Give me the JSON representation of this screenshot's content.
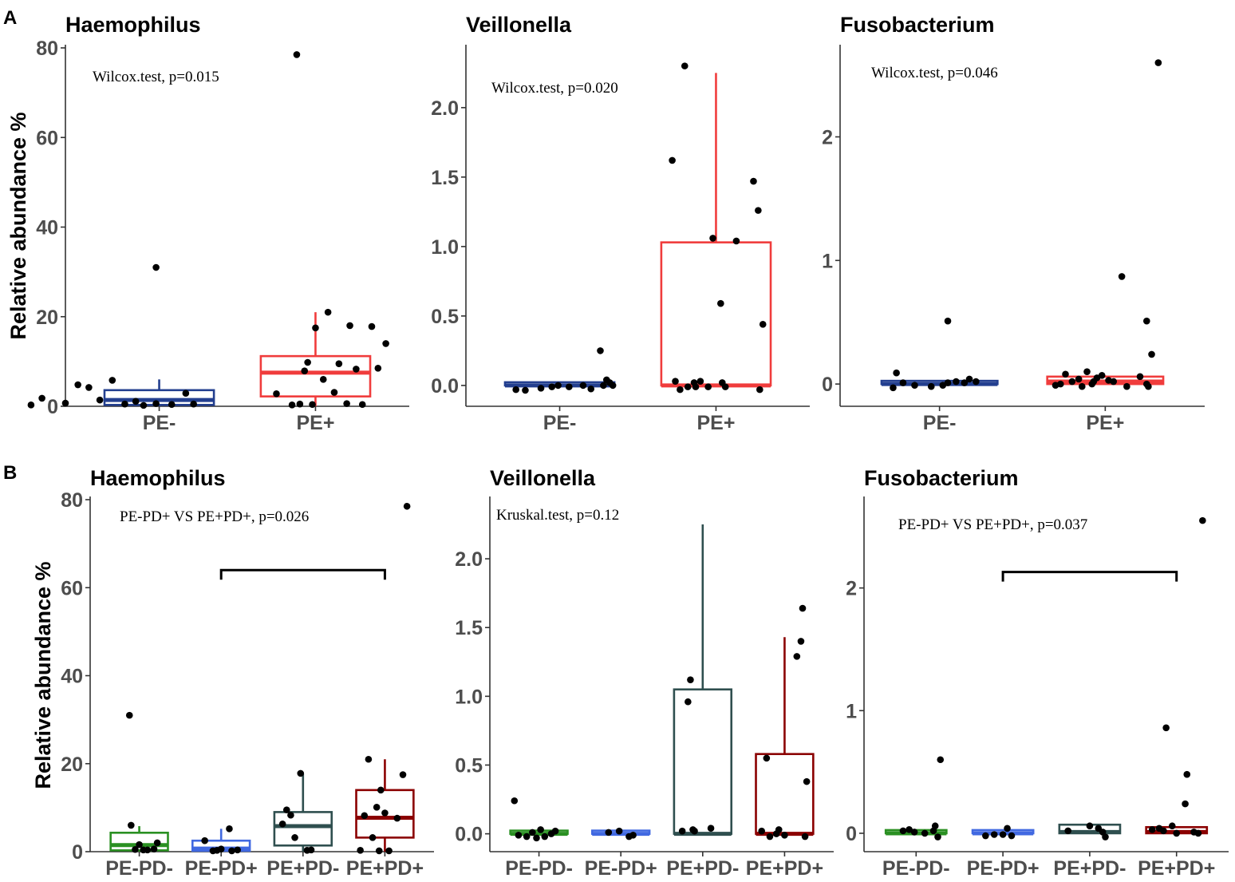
{
  "panel_labels": [
    "A",
    "B"
  ],
  "chart_data": [
    {
      "type": "box",
      "title": "Haemophilus",
      "ylabel": "Relative abundance %",
      "ylim": [
        0,
        80
      ],
      "yticks": [
        0,
        20,
        40,
        60,
        80
      ],
      "yticklabels": [
        "0",
        "20",
        "40",
        "60",
        "80"
      ],
      "annotation": "Wilcox.test, p=0.015",
      "categories": [
        "PE-",
        "PE+"
      ],
      "colors": [
        "#233f8f",
        "#f03c3c"
      ],
      "boxes": [
        {
          "q1": 0.3,
          "median": 1.4,
          "q3": 3.6,
          "whisker_low": 0,
          "whisker_high": 6
        },
        {
          "q1": 2.2,
          "median": 7.5,
          "q3": 11.2,
          "whisker_low": 0,
          "whisker_high": 21
        }
      ],
      "points": [
        [
          [
            0.18,
            0.3
          ],
          [
            0.25,
            1.8
          ],
          [
            0.4,
            0.7
          ],
          [
            0.48,
            4.8
          ],
          [
            0.55,
            4.2
          ],
          [
            0.62,
            1.4
          ],
          [
            0.7,
            5.8
          ],
          [
            0.78,
            0.5
          ],
          [
            0.85,
            1.1
          ],
          [
            0.9,
            0.2
          ],
          [
            0.98,
            0.6
          ],
          [
            1.08,
            0.4
          ],
          [
            1.17,
            2.9
          ],
          [
            1.22,
            0.5
          ],
          [
            0.98,
            31
          ]
        ],
        [
          [
            1.75,
            2.8
          ],
          [
            1.85,
            0.3
          ],
          [
            1.9,
            0.5
          ],
          [
            1.95,
            9.8
          ],
          [
            2.0,
            17.5
          ],
          [
            2.05,
            6.0
          ],
          [
            2.08,
            21
          ],
          [
            1.98,
            0.4
          ],
          [
            2.12,
            3.1
          ],
          [
            2.2,
            0.6
          ],
          [
            2.22,
            18
          ],
          [
            2.26,
            8.3
          ],
          [
            2.3,
            0.4
          ],
          [
            2.36,
            17.8
          ],
          [
            2.4,
            8.5
          ],
          [
            2.45,
            14
          ],
          [
            2.15,
            9.5
          ],
          [
            1.88,
            78.5
          ],
          [
            1.93,
            7.9
          ]
        ]
      ]
    },
    {
      "type": "box",
      "title": "Veillonella",
      "ylabel": "",
      "ylim": [
        -0.15,
        2.43
      ],
      "yticks": [
        0,
        0.5,
        1.0,
        1.5,
        2.0
      ],
      "yticklabels": [
        "0.0",
        "0.5",
        "1.0",
        "1.5",
        "2.0"
      ],
      "annotation": "Wilcox.test, p=0.020",
      "categories": [
        "PE-",
        "PE+"
      ],
      "colors": [
        "#233f8f",
        "#f03c3c"
      ],
      "boxes": [
        {
          "q1": 0.0,
          "median": 0.0,
          "q3": 0.01,
          "whisker_low": 0,
          "whisker_high": 0.01
        },
        {
          "q1": 0.0,
          "median": 0.0,
          "q3": 1.03,
          "whisker_low": 0,
          "whisker_high": 2.25
        }
      ],
      "points": [
        [
          [
            0.72,
            -0.03
          ],
          [
            0.78,
            -0.035
          ],
          [
            0.88,
            -0.02
          ],
          [
            0.95,
            -0.01
          ],
          [
            0.99,
            0.0
          ],
          [
            1.06,
            -0.01
          ],
          [
            1.15,
            0.0
          ],
          [
            1.2,
            -0.025
          ],
          [
            1.28,
            0.0
          ],
          [
            1.3,
            0.04
          ],
          [
            1.32,
            0.02
          ],
          [
            1.34,
            0.0
          ],
          [
            1.26,
            0.25
          ]
        ],
        [
          [
            1.72,
            1.62
          ],
          [
            1.8,
            2.3
          ],
          [
            1.74,
            0.03
          ],
          [
            1.77,
            -0.03
          ],
          [
            1.82,
            -0.01
          ],
          [
            1.87,
            -0.01
          ],
          [
            1.9,
            0.03
          ],
          [
            1.95,
            -0.01
          ],
          [
            1.98,
            1.06
          ],
          [
            2.03,
            0.59
          ],
          [
            2.04,
            0.02
          ],
          [
            2.06,
            -0.01
          ],
          [
            2.13,
            1.04
          ],
          [
            2.24,
            1.47
          ],
          [
            2.27,
            1.26
          ],
          [
            2.3,
            0.44
          ],
          [
            2.28,
            -0.03
          ],
          [
            1.86,
            0.02
          ]
        ]
      ]
    },
    {
      "type": "box",
      "title": "Fusobacterium",
      "ylabel": "",
      "ylim": [
        -0.18,
        2.72
      ],
      "yticks": [
        0,
        1,
        2
      ],
      "yticklabels": [
        "0",
        "1",
        "2"
      ],
      "annotation": "Wilcox.test, p=0.046",
      "categories": [
        "PE-",
        "PE+"
      ],
      "colors": [
        "#233f8f",
        "#f03c3c"
      ],
      "boxes": [
        {
          "q1": 0.0,
          "median": 0.0,
          "q3": 0.01,
          "whisker_low": 0,
          "whisker_high": 0.01
        },
        {
          "q1": 0.0,
          "median": 0.02,
          "q3": 0.06,
          "whisker_low": 0,
          "whisker_high": 0.07
        }
      ],
      "points": [
        [
          [
            0.72,
            -0.03
          ],
          [
            0.74,
            0.09
          ],
          [
            0.78,
            0.01
          ],
          [
            0.85,
            -0.01
          ],
          [
            0.95,
            -0.02
          ],
          [
            1.02,
            -0.01
          ],
          [
            1.05,
            0.01
          ],
          [
            1.1,
            0.02
          ],
          [
            1.15,
            0.01
          ],
          [
            1.18,
            0.04
          ],
          [
            1.22,
            0.02
          ],
          [
            1.05,
            0.51
          ]
        ],
        [
          [
            1.7,
            -0.01
          ],
          [
            1.73,
            0.0
          ],
          [
            1.76,
            0.08
          ],
          [
            1.8,
            0.02
          ],
          [
            1.84,
            0.04
          ],
          [
            1.86,
            -0.02
          ],
          [
            1.89,
            0.1
          ],
          [
            1.92,
            0.0
          ],
          [
            1.95,
            0.05
          ],
          [
            1.98,
            0.07
          ],
          [
            2.02,
            0.03
          ],
          [
            2.05,
            0.02
          ],
          [
            2.13,
            -0.02
          ],
          [
            2.21,
            0.06
          ],
          [
            2.25,
            0.0
          ],
          [
            2.32,
            2.6
          ],
          [
            2.1,
            0.87
          ],
          [
            2.25,
            0.51
          ],
          [
            2.28,
            0.24
          ],
          [
            2.26,
            -0.02
          ],
          [
            1.93,
            0.02
          ]
        ]
      ]
    },
    {
      "type": "box",
      "title": "Haemophilus",
      "ylabel": "Relative abundance %",
      "ylim": [
        0,
        80
      ],
      "yticks": [
        0,
        20,
        40,
        60,
        80
      ],
      "yticklabels": [
        "0",
        "20",
        "40",
        "60",
        "80"
      ],
      "annotation": "PE-PD+ VS PE+PD+, p=0.026",
      "bracket": {
        "from": 2,
        "to": 4,
        "y": 64
      },
      "categories": [
        "PE-PD-",
        "PE-PD+",
        "PE+PD-",
        "PE+PD+"
      ],
      "colors": [
        "#2a9022",
        "#4169e1",
        "#2f4f4f",
        "#8b0000"
      ],
      "boxes": [
        {
          "q1": 0.3,
          "median": 1.5,
          "q3": 4.3,
          "whisker_low": 0,
          "whisker_high": 5.8
        },
        {
          "q1": 0.2,
          "median": 0.7,
          "q3": 2.5,
          "whisker_low": 0,
          "whisker_high": 5.2
        },
        {
          "q1": 1.4,
          "median": 5.8,
          "q3": 9.0,
          "whisker_low": 0,
          "whisker_high": 17.8
        },
        {
          "q1": 3.2,
          "median": 7.7,
          "q3": 14.0,
          "whisker_low": 0,
          "whisker_high": 21
        }
      ],
      "points": [
        [
          [
            0.88,
            31
          ],
          [
            0.9,
            6.0
          ],
          [
            0.95,
            0.5
          ],
          [
            1.0,
            1.6
          ],
          [
            1.05,
            0.4
          ],
          [
            1.1,
            0.4
          ],
          [
            1.18,
            0.6
          ],
          [
            1.22,
            2.0
          ]
        ],
        [
          [
            1.8,
            2.5
          ],
          [
            1.9,
            0.2
          ],
          [
            1.95,
            0.3
          ],
          [
            2.0,
            0.6
          ],
          [
            2.1,
            5.2
          ],
          [
            2.13,
            0.2
          ],
          [
            2.2,
            0.4
          ]
        ],
        [
          [
            2.75,
            6.3
          ],
          [
            2.8,
            9.5
          ],
          [
            2.85,
            8.3
          ],
          [
            2.9,
            3.2
          ],
          [
            2.97,
            17.8
          ],
          [
            3.05,
            0.3
          ],
          [
            3.1,
            0.4
          ]
        ],
        [
          [
            3.7,
            0.3
          ],
          [
            3.75,
            8.2
          ],
          [
            3.8,
            21
          ],
          [
            3.85,
            3.2
          ],
          [
            3.9,
            10.1
          ],
          [
            3.95,
            14
          ],
          [
            4.0,
            8.8
          ],
          [
            4.05,
            0.2
          ],
          [
            4.15,
            7.6
          ],
          [
            4.22,
            17.5
          ],
          [
            4.27,
            78.5
          ],
          [
            3.93,
            0.2
          ]
        ]
      ]
    },
    {
      "type": "box",
      "title": "Veillonella",
      "ylabel": "",
      "ylim": [
        -0.13,
        2.43
      ],
      "yticks": [
        0,
        0.5,
        1.0,
        1.5,
        2.0
      ],
      "yticklabels": [
        "0.0",
        "0.5",
        "1.0",
        "1.5",
        "2.0"
      ],
      "annotation": "Kruskal.test, p=0.12",
      "categories": [
        "PE-PD-",
        "PE-PD+",
        "PE+PD-",
        "PE+PD+"
      ],
      "colors": [
        "#2a9022",
        "#4169e1",
        "#2f4f4f",
        "#8b0000"
      ],
      "boxes": [
        {
          "q1": 0.0,
          "median": 0.0,
          "q3": 0.01,
          "whisker_low": 0,
          "whisker_high": 0.01
        },
        {
          "q1": 0.0,
          "median": 0.0,
          "q3": 0.01,
          "whisker_low": 0,
          "whisker_high": 0.01
        },
        {
          "q1": 0.0,
          "median": 0.0,
          "q3": 1.05,
          "whisker_low": 0,
          "whisker_high": 2.25
        },
        {
          "q1": 0.0,
          "median": 0.0,
          "q3": 0.58,
          "whisker_low": 0,
          "whisker_high": 1.43
        }
      ],
      "points": [
        [
          [
            0.7,
            0.24
          ],
          [
            0.75,
            -0.01
          ],
          [
            0.85,
            -0.02
          ],
          [
            0.92,
            0.01
          ],
          [
            0.97,
            -0.03
          ],
          [
            1.02,
            0.03
          ],
          [
            1.07,
            -0.02
          ],
          [
            1.15,
            0.0
          ],
          [
            1.2,
            0.02
          ]
        ],
        [
          [
            1.85,
            0.01
          ],
          [
            1.98,
            0.02
          ],
          [
            2.1,
            -0.02
          ],
          [
            2.15,
            -0.01
          ]
        ],
        [
          [
            2.75,
            0.02
          ],
          [
            2.82,
            0.96
          ],
          [
            2.85,
            1.12
          ],
          [
            2.88,
            0.03
          ],
          [
            2.9,
            0.02
          ],
          [
            3.1,
            0.04
          ]
        ],
        [
          [
            3.72,
            0.02
          ],
          [
            3.78,
            0.55
          ],
          [
            3.82,
            -0.02
          ],
          [
            3.9,
            0.0
          ],
          [
            3.93,
            0.03
          ],
          [
            4.0,
            -0.01
          ],
          [
            4.15,
            1.29
          ],
          [
            4.22,
            1.64
          ],
          [
            4.2,
            1.4
          ],
          [
            4.27,
            0.38
          ],
          [
            4.25,
            -0.02
          ]
        ]
      ]
    },
    {
      "type": "box",
      "title": "Fusobacterium",
      "ylabel": "",
      "ylim": [
        -0.15,
        2.72
      ],
      "yticks": [
        0,
        1,
        2
      ],
      "yticklabels": [
        "0",
        "1",
        "2"
      ],
      "annotation": "PE-PD+ VS PE+PD+, p=0.037",
      "bracket": {
        "from": 2,
        "to": 4,
        "y": 2.13
      },
      "categories": [
        "PE-PD-",
        "PE-PD+",
        "PE+PD-",
        "PE+PD+"
      ],
      "colors": [
        "#2a9022",
        "#4169e1",
        "#2f4f4f",
        "#8b0000"
      ],
      "boxes": [
        {
          "q1": 0.0,
          "median": 0.0,
          "q3": 0.01,
          "whisker_low": 0,
          "whisker_high": 0.01
        },
        {
          "q1": 0.0,
          "median": 0.0,
          "q3": 0.01,
          "whisker_low": 0,
          "whisker_high": 0.01
        },
        {
          "q1": 0.0,
          "median": 0.01,
          "q3": 0.07,
          "whisker_low": 0,
          "whisker_high": 0.07
        },
        {
          "q1": 0.0,
          "median": 0.01,
          "q3": 0.05,
          "whisker_low": 0,
          "whisker_high": 0.05
        }
      ],
      "points": [
        [
          [
            0.85,
            0.02
          ],
          [
            0.92,
            0.03
          ],
          [
            0.98,
            0.01
          ],
          [
            1.1,
            0.0
          ],
          [
            1.22,
            0.06
          ],
          [
            1.25,
            -0.03
          ],
          [
            1.28,
            0.6
          ],
          [
            1.2,
            0.02
          ]
        ],
        [
          [
            1.8,
            -0.02
          ],
          [
            1.9,
            -0.01
          ],
          [
            2.0,
            -0.01
          ],
          [
            2.05,
            0.04
          ],
          [
            2.1,
            -0.02
          ]
        ],
        [
          [
            2.75,
            0.02
          ],
          [
            3.0,
            0.06
          ],
          [
            3.1,
            0.04
          ],
          [
            3.15,
            0.01
          ],
          [
            3.18,
            -0.03
          ]
        ],
        [
          [
            3.72,
            0.03
          ],
          [
            3.85,
            0.02
          ],
          [
            3.88,
            0.86
          ],
          [
            3.95,
            0.06
          ],
          [
            4.0,
            0.0
          ],
          [
            4.1,
            0.24
          ],
          [
            4.12,
            0.48
          ],
          [
            4.2,
            0.01
          ],
          [
            4.25,
            0.0
          ],
          [
            4.3,
            2.55
          ],
          [
            3.8,
            0.04
          ]
        ]
      ]
    }
  ]
}
